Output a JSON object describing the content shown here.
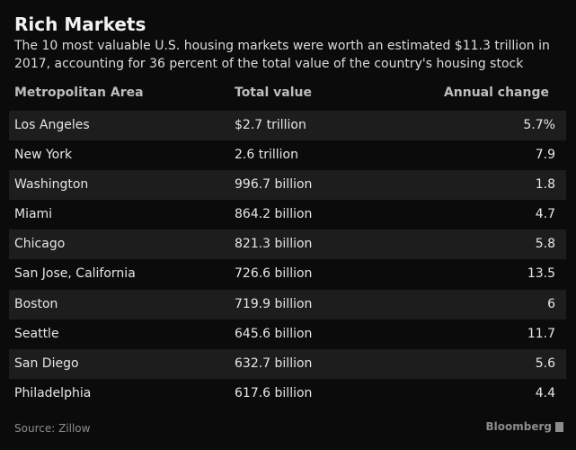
{
  "title": "Rich Markets",
  "subtitle": "The 10 most valuable U.S. housing markets were worth an estimated $11.3 trillion in 2017, accounting for 36 percent of the total value of the country's housing stock",
  "source": "Source: Zillow",
  "brand": "Bloomberg",
  "chart_data": {
    "type": "table",
    "columns": [
      "Metropolitan Area",
      "Total value",
      "Annual change"
    ],
    "rows": [
      [
        "Los Angeles",
        "$2.7 trillion",
        "5.7%"
      ],
      [
        "New York",
        "2.6 trillion",
        "7.9"
      ],
      [
        "Washington",
        "996.7 billion",
        "1.8"
      ],
      [
        "Miami",
        "864.2 billion",
        "4.7"
      ],
      [
        "Chicago",
        "821.3 billion",
        "5.8"
      ],
      [
        "San Jose, California",
        "726.6 billion",
        "13.5"
      ],
      [
        "Boston",
        "719.9 billion",
        "6"
      ],
      [
        "Seattle",
        "645.6 billion",
        "11.7"
      ],
      [
        "San Diego",
        "632.7 billion",
        "5.6"
      ],
      [
        "Philadelphia",
        "617.6 billion",
        "4.4"
      ]
    ]
  },
  "colors": {
    "background": "#0b0b0b",
    "stripe": "#1d1d1d"
  }
}
